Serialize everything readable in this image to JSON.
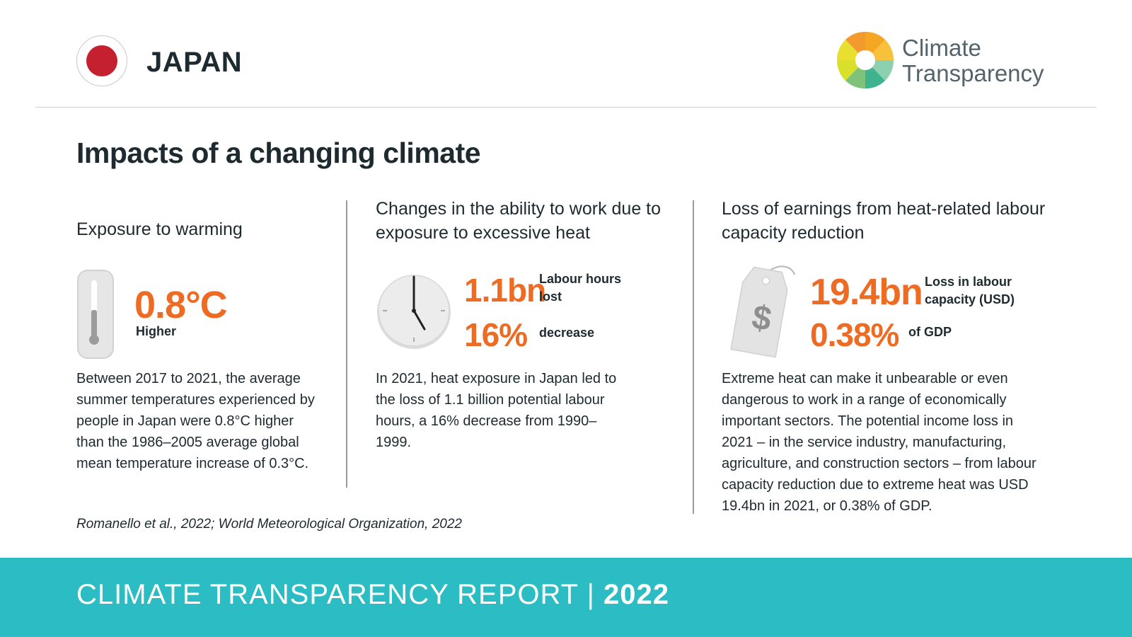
{
  "header": {
    "country": "JAPAN",
    "logo_line1": "Climate",
    "logo_line2": "Transparency"
  },
  "section_title": "Impacts of a changing climate",
  "col1": {
    "heading": "Exposure to warming",
    "stat_value": "0.8°C",
    "stat_label": "Higher",
    "body": "Between 2017 to 2021, the average summer temperatures experienced by people in Japan were 0.8°C higher than the 1986–2005 average global mean temperature increase of 0.3°C."
  },
  "col2": {
    "heading": "Changes in the ability to work due to exposure to excessive heat",
    "stat1_value": "1.1bn",
    "stat1_label": "Labour hours lost",
    "stat2_value": "16%",
    "stat2_label": "decrease",
    "body": "In 2021, heat exposure in Japan led to the loss of 1.1 billion potential labour hours, a 16% decrease from 1990–1999."
  },
  "col3": {
    "heading": "Loss of earnings from heat-related labour capacity reduction",
    "stat1_value": "19.4bn",
    "stat1_label": "Loss in labour capacity (USD)",
    "stat2_value": "0.38%",
    "stat2_label": "of GDP",
    "body": "Extreme heat can make it unbearable or even dangerous to work in a range of economically important sectors. The potential income loss in 2021 – in the service industry, manufacturing, agriculture, and construction sectors – from labour capacity reduction due to extreme heat was USD 19.4bn in 2021, or 0.38% of GDP."
  },
  "source": "Romanello et al., 2022; World Meteorological Organization, 2022",
  "footer": {
    "report_label": "CLIMATE TRANSPARENCY REPORT | ",
    "year": "2022"
  },
  "colors": {
    "accent_orange": "#ee6b24",
    "footer_teal": "#2bbcc4",
    "flag_red": "#c4202f",
    "text_dark": "#1d2a2f"
  },
  "icons": [
    "japan-flag-icon",
    "climate-transparency-logo",
    "thermometer-icon",
    "clock-icon",
    "price-tag-icon"
  ]
}
